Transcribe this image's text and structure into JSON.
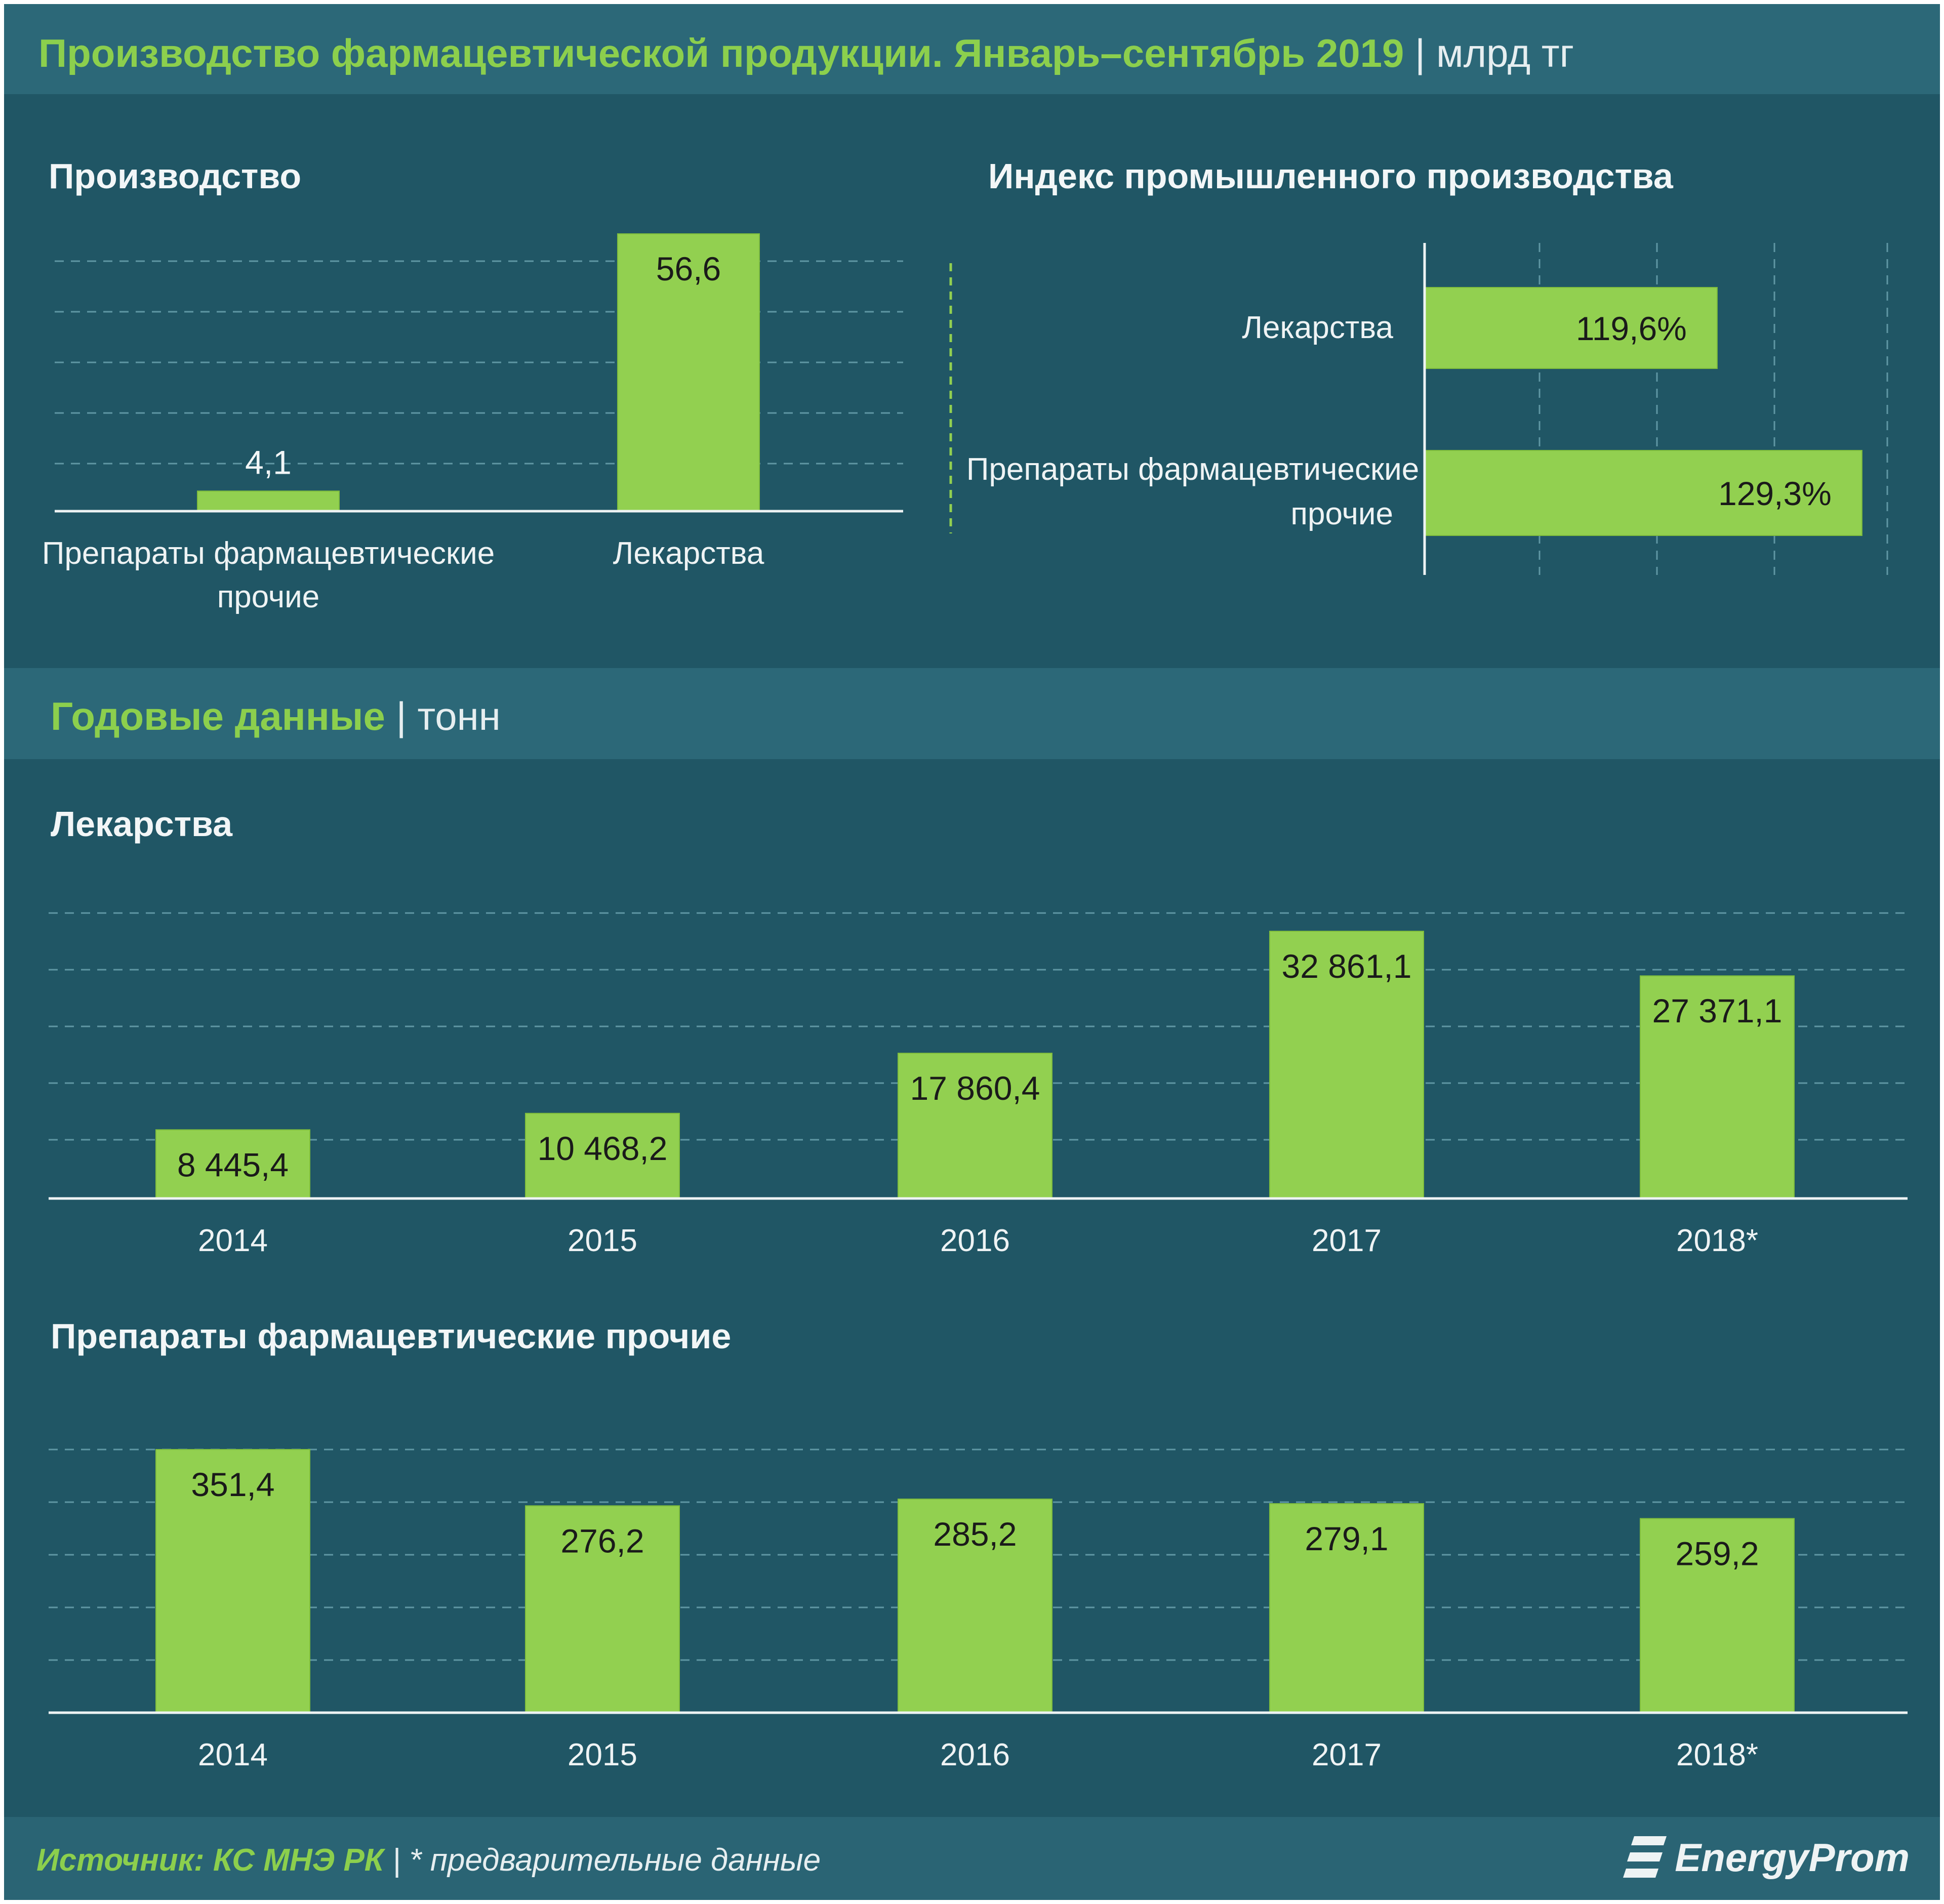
{
  "header": {
    "title": "Производство фармацевтической продукции. Январь–сентябрь 2019",
    "unit": "| млрд тг"
  },
  "colors": {
    "background": "#205665",
    "band": "#2c6878",
    "bar": "#92d050",
    "title_accent": "#8ccf4d",
    "text": "#f2f6f7"
  },
  "annual_header": {
    "title": "Годовые данные",
    "unit": "| тонн"
  },
  "footer": {
    "source": "Источник: КС МНЭ РК",
    "separator": "|",
    "note": "* предварительные данные",
    "brand": "EnergyProm"
  },
  "chart_data": [
    {
      "type": "bar",
      "title": "Производство",
      "categories": [
        "Препараты фармацевтические прочие",
        "Лекарства"
      ],
      "values": [
        4.1,
        56.6
      ],
      "value_labels": [
        "4,1",
        "56,6"
      ],
      "ylim": [
        0,
        56.6
      ],
      "grid": true,
      "orientation": "vertical"
    },
    {
      "type": "bar",
      "title": "Индекс промышленного производства",
      "orientation": "horizontal",
      "categories": [
        "Лекарства",
        "Препараты фармацевтические прочие"
      ],
      "values": [
        119.6,
        129.3
      ],
      "value_labels": [
        "119,6%",
        "129,3%"
      ],
      "xlim": [
        100,
        131
      ],
      "grid": true
    },
    {
      "type": "bar",
      "title": "Лекарства",
      "categories": [
        "2014",
        "2015",
        "2016",
        "2017",
        "2018*"
      ],
      "values": [
        8445.4,
        10468.2,
        17860.4,
        32861.1,
        27371.1
      ],
      "value_labels": [
        "8 445,4",
        "10 468,2",
        "17 860,4",
        "32 861,1",
        "27 371,1"
      ],
      "ylim": [
        0,
        32861.1
      ],
      "grid": true
    },
    {
      "type": "bar",
      "title": "Препараты фармацевтические прочие",
      "categories": [
        "2014",
        "2015",
        "2016",
        "2017",
        "2018*"
      ],
      "values": [
        351.4,
        276.2,
        285.2,
        279.1,
        259.2
      ],
      "value_labels": [
        "351,4",
        "276,2",
        "285,2",
        "279,1",
        "259,2"
      ],
      "ylim": [
        0,
        351.4
      ],
      "grid": true
    }
  ]
}
